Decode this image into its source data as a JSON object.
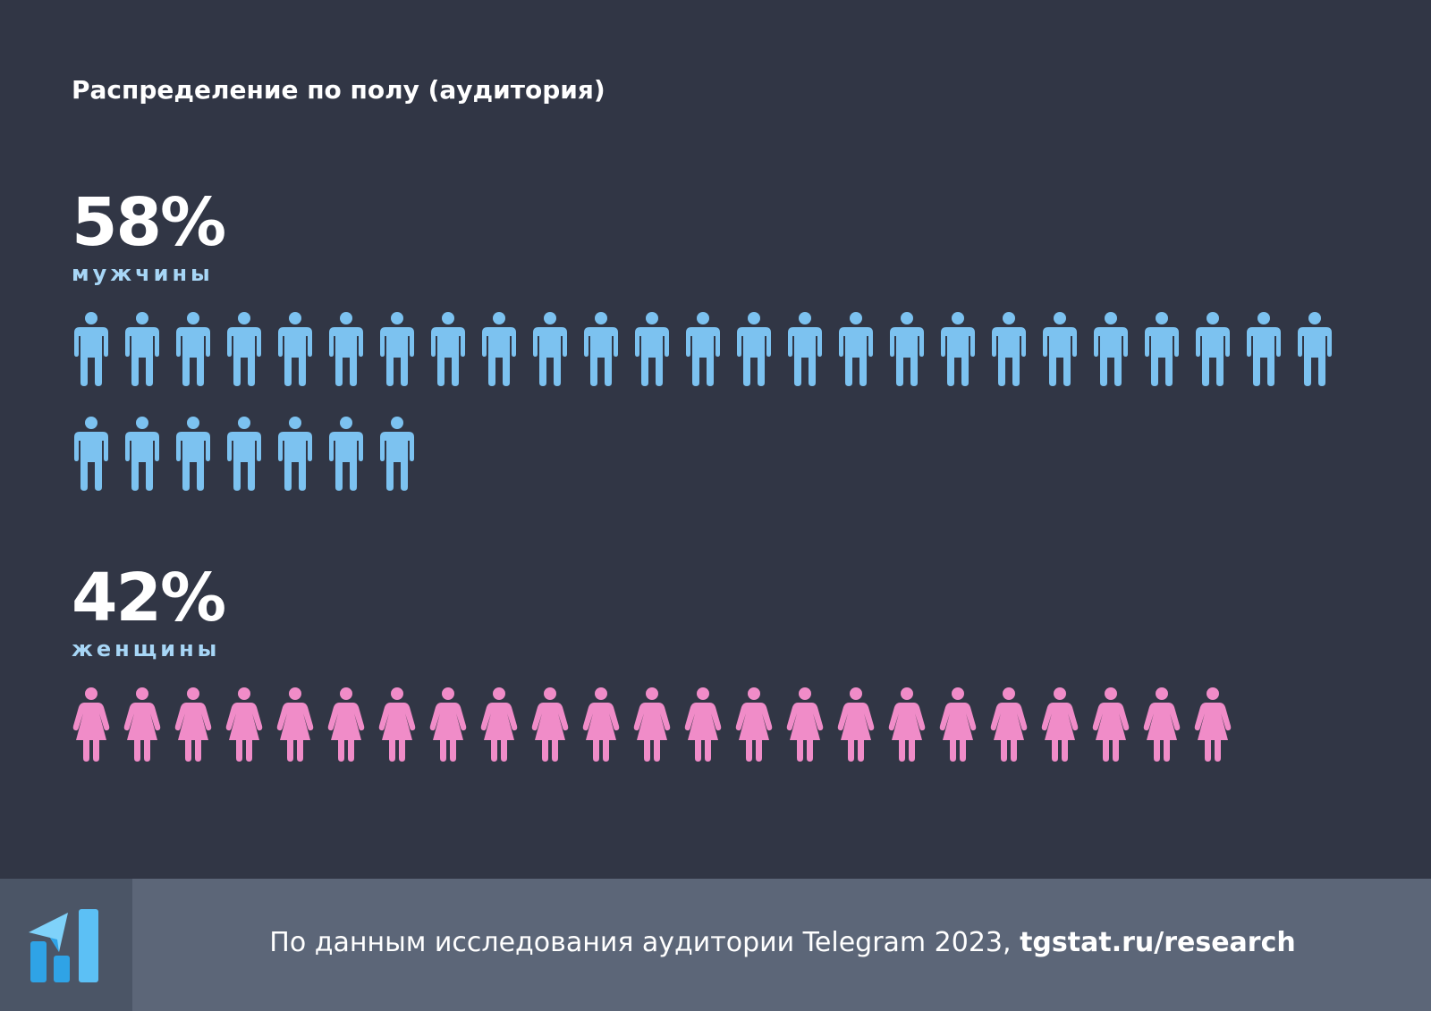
{
  "title": "Распределение по полу (аудитория)",
  "colors": {
    "background": "#313645",
    "male": "#7cc2f0",
    "female": "#f08cc8",
    "male_label": "#a7d6f6",
    "footer": "#5c6678",
    "logo_bg": "#4b5566",
    "logo": "#2fa3e6"
  },
  "chart_data": {
    "type": "pictogram",
    "title": "Распределение по полу (аудитория)",
    "series": [
      {
        "name": "мужчины",
        "value": 58,
        "percent_label": "58%",
        "icon": "male-person-icon",
        "icon_count": 32
      },
      {
        "name": "женщины",
        "value": 42,
        "percent_label": "42%",
        "icon": "female-person-icon",
        "icon_count": 23
      }
    ],
    "unit": "%"
  },
  "footer": {
    "logo_icon": "tgstat-logo-icon",
    "source_text": "По данным исследования аудитории Telegram 2023, ",
    "source_link": "tgstat.ru/research"
  }
}
